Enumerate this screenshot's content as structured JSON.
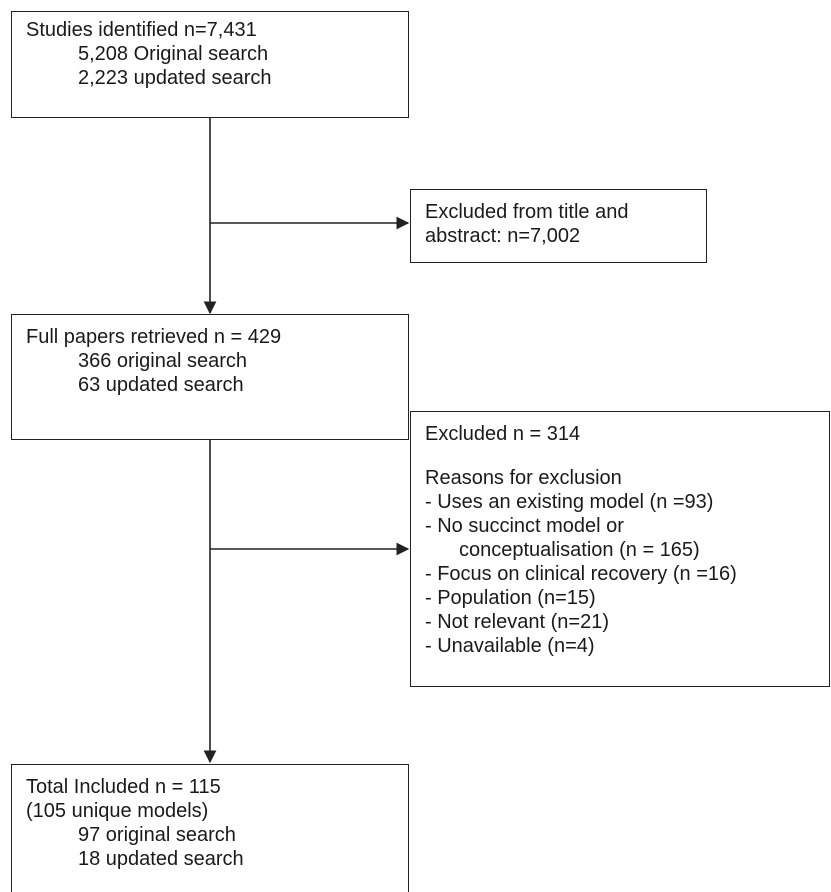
{
  "boxes": {
    "identified": {
      "title": "Studies identified n=7,431",
      "lines": [
        "5,208 Original search",
        "2,223 updated search"
      ]
    },
    "excluded_title": {
      "lines": [
        "Excluded from title and",
        "abstract: n=7,002"
      ]
    },
    "full_papers": {
      "title": "Full papers retrieved n = 429",
      "lines": [
        "366 original search",
        "63 updated search"
      ]
    },
    "excluded_full": {
      "title": "Excluded n = 314",
      "reasons_heading": "Reasons for exclusion",
      "reasons": [
        "- Uses an existing model (n =93)",
        "- No succinct model or",
        "conceptualisation (n = 165)",
        "- Focus on clinical recovery (n =16)",
        "- Population (n=15)",
        "- Not relevant (n=21)",
        "- Unavailable (n=4)"
      ]
    },
    "included": {
      "title": "Total Included n = 115",
      "subtitle": "(105 unique models)",
      "lines": [
        "97 original search",
        "18 updated search"
      ]
    }
  }
}
